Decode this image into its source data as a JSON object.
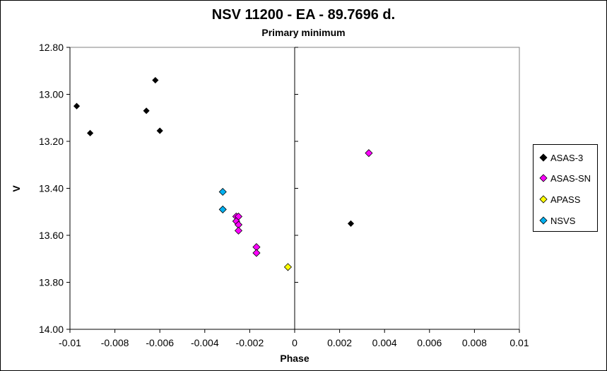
{
  "chart_data": {
    "type": "scatter",
    "title": "NSV 11200 - EA - 89.7696 d.",
    "subtitle": "Primary minimum",
    "xlabel": "Phase",
    "ylabel": "V",
    "xlim": [
      -0.01,
      0.01
    ],
    "ylim": [
      12.8,
      14.0
    ],
    "y_inverted": true,
    "x_ticks": [
      -0.01,
      -0.008,
      -0.006,
      -0.004,
      -0.002,
      0,
      0.002,
      0.004,
      0.006,
      0.008,
      0.01
    ],
    "x_tick_labels": [
      "-0.01",
      "-0.008",
      "-0.006",
      "-0.004",
      "-0.002",
      "0",
      "0.002",
      "0.004",
      "0.006",
      "0.008",
      "0.01"
    ],
    "y_ticks": [
      12.8,
      13.0,
      13.2,
      13.4,
      13.6,
      13.8,
      14.0
    ],
    "y_tick_labels": [
      "12.80",
      "13.00",
      "13.20",
      "13.40",
      "13.60",
      "13.80",
      "14.00"
    ],
    "grid": false,
    "legend_position": "right",
    "series": [
      {
        "name": "ASAS-3",
        "color": "#000000",
        "marker": "diamond",
        "x": [
          -0.0097,
          -0.0091,
          -0.0062,
          -0.0066,
          -0.006,
          0.0025
        ],
        "y": [
          13.05,
          13.165,
          12.94,
          13.07,
          13.155,
          13.55
        ]
      },
      {
        "name": "ASAS-SN",
        "color": "#ff00ff",
        "marker": "diamond",
        "x": [
          0.0033,
          -0.0026,
          -0.0025,
          -0.0026,
          -0.0025,
          -0.0025,
          -0.0017,
          -0.0017
        ],
        "y": [
          13.25,
          13.52,
          13.52,
          13.54,
          13.555,
          13.58,
          13.65,
          13.675
        ]
      },
      {
        "name": "APASS",
        "color": "#ffff00",
        "marker": "diamond",
        "x": [
          -0.0003
        ],
        "y": [
          13.735
        ]
      },
      {
        "name": "NSVS",
        "color": "#00b0f0",
        "marker": "diamond",
        "x": [
          -0.0032,
          -0.0032
        ],
        "y": [
          13.415,
          13.49
        ]
      }
    ]
  }
}
